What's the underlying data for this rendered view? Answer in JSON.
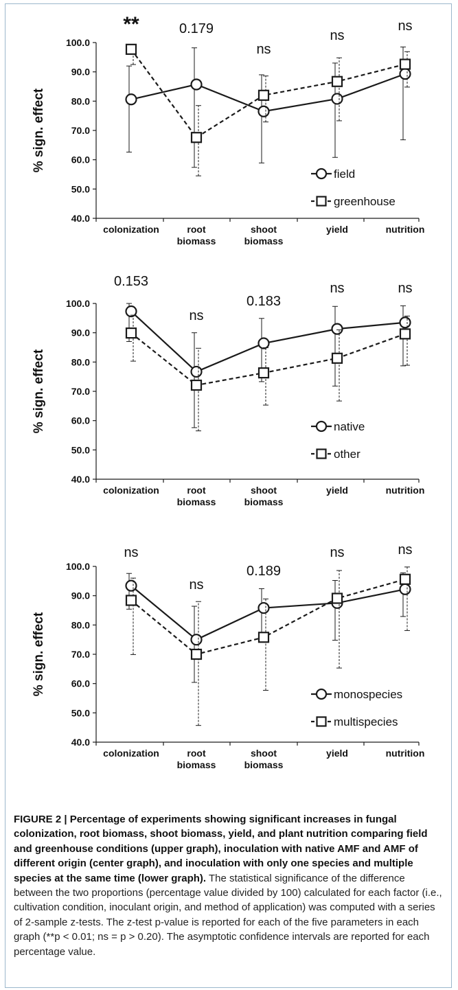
{
  "chart_data": [
    {
      "type": "line",
      "ylabel": "% sign. effect",
      "ylim": [
        40,
        100
      ],
      "yticks": [
        "40.0",
        "50.0",
        "60.0",
        "70.0",
        "80.0",
        "90.0",
        "100.0"
      ],
      "categories": [
        [
          "colonization"
        ],
        [
          "root",
          "biomass"
        ],
        [
          "shoot",
          "biomass"
        ],
        [
          "yield"
        ],
        [
          "nutrition"
        ]
      ],
      "annotations": [
        "**",
        "0.179",
        "ns",
        "ns",
        "ns"
      ],
      "series": [
        {
          "name": "field",
          "marker": "circle",
          "dashed": false,
          "values": [
            80.6,
            85.7,
            76.5,
            80.8,
            89.3
          ],
          "ci_low": [
            62.6,
            57.4,
            58.9,
            60.8,
            66.8
          ],
          "ci_high": [
            92.0,
            98.2,
            89.0,
            93.0,
            98.5
          ]
        },
        {
          "name": "greenhouse",
          "marker": "square",
          "dashed": true,
          "values": [
            97.7,
            67.6,
            82.0,
            86.7,
            92.6
          ],
          "ci_low": [
            92.5,
            54.5,
            72.9,
            73.3,
            84.8
          ],
          "ci_high": [
            98.0,
            78.5,
            88.6,
            94.8,
            96.9
          ]
        }
      ]
    },
    {
      "type": "line",
      "ylabel": "% sign. effect",
      "ylim": [
        40,
        100
      ],
      "yticks": [
        "40.0",
        "50.0",
        "60.0",
        "70.0",
        "80.0",
        "90.0",
        "100.0"
      ],
      "categories": [
        [
          "colonization"
        ],
        [
          "root",
          "biomass"
        ],
        [
          "shoot",
          "biomass"
        ],
        [
          "yield"
        ],
        [
          "nutrition"
        ]
      ],
      "annotations": [
        "0.153",
        "ns",
        "0.183",
        "ns",
        "ns"
      ],
      "series": [
        {
          "name": "native",
          "marker": "circle",
          "dashed": false,
          "values": [
            97.3,
            76.7,
            86.4,
            91.3,
            93.5
          ],
          "ci_low": [
            87.0,
            57.6,
            73.3,
            71.8,
            78.7
          ],
          "ci_high": [
            100.0,
            90.0,
            94.9,
            99.0,
            99.2
          ]
        },
        {
          "name": "other",
          "marker": "square",
          "dashed": true,
          "values": [
            89.9,
            72.1,
            76.3,
            81.3,
            89.6
          ],
          "ci_low": [
            80.3,
            56.5,
            65.3,
            66.7,
            78.9
          ],
          "ci_high": [
            96.0,
            84.7,
            84.9,
            91.0,
            95.7
          ]
        }
      ]
    },
    {
      "type": "line",
      "ylabel": "% sign. effect",
      "ylim": [
        40,
        100
      ],
      "yticks": [
        "40.0",
        "50.0",
        "60.0",
        "70.0",
        "80.0",
        "90.0",
        "100.0"
      ],
      "categories": [
        [
          "colonization"
        ],
        [
          "root",
          "biomass"
        ],
        [
          "shoot",
          "biomass"
        ],
        [
          "yield"
        ],
        [
          "nutrition"
        ]
      ],
      "annotations": [
        "ns",
        "ns",
        "0.189",
        "ns",
        "ns"
      ],
      "series": [
        {
          "name": "monospecies",
          "marker": "circle",
          "dashed": false,
          "values": [
            93.4,
            75.0,
            85.8,
            87.5,
            92.2
          ],
          "ci_low": [
            85.4,
            60.4,
            74.9,
            74.8,
            82.9
          ],
          "ci_high": [
            97.6,
            86.4,
            92.4,
            95.2,
            97.8
          ]
        },
        {
          "name": "multispecies",
          "marker": "square",
          "dashed": true,
          "values": [
            88.4,
            70.0,
            75.8,
            89.1,
            95.6
          ],
          "ci_low": [
            69.9,
            45.7,
            57.7,
            65.3,
            78.1
          ],
          "ci_high": [
            96.0,
            88.0,
            88.9,
            98.6,
            99.8
          ]
        }
      ]
    }
  ],
  "caption": {
    "bold": "FIGURE 2 | Percentage of experiments showing significant increases in fungal colonization, root biomass, shoot biomass, yield, and plant nutrition comparing field and greenhouse conditions (upper graph), inoculation with native AMF and AMF of different origin (center graph), and inoculation with only one species and multiple species at the same time (lower graph).",
    "text": " The statistical significance of the difference between the two proportions (percentage value divided by 100) calculated for each factor (i.e., cultivation condition, inoculant origin, and method of application) was computed with a series of 2-sample z-tests. The z-test p-value is reported for each of the five parameters in each graph (**p < 0.01; ns = p > 0.20). The asymptotic confidence intervals are reported for each percentage value."
  }
}
